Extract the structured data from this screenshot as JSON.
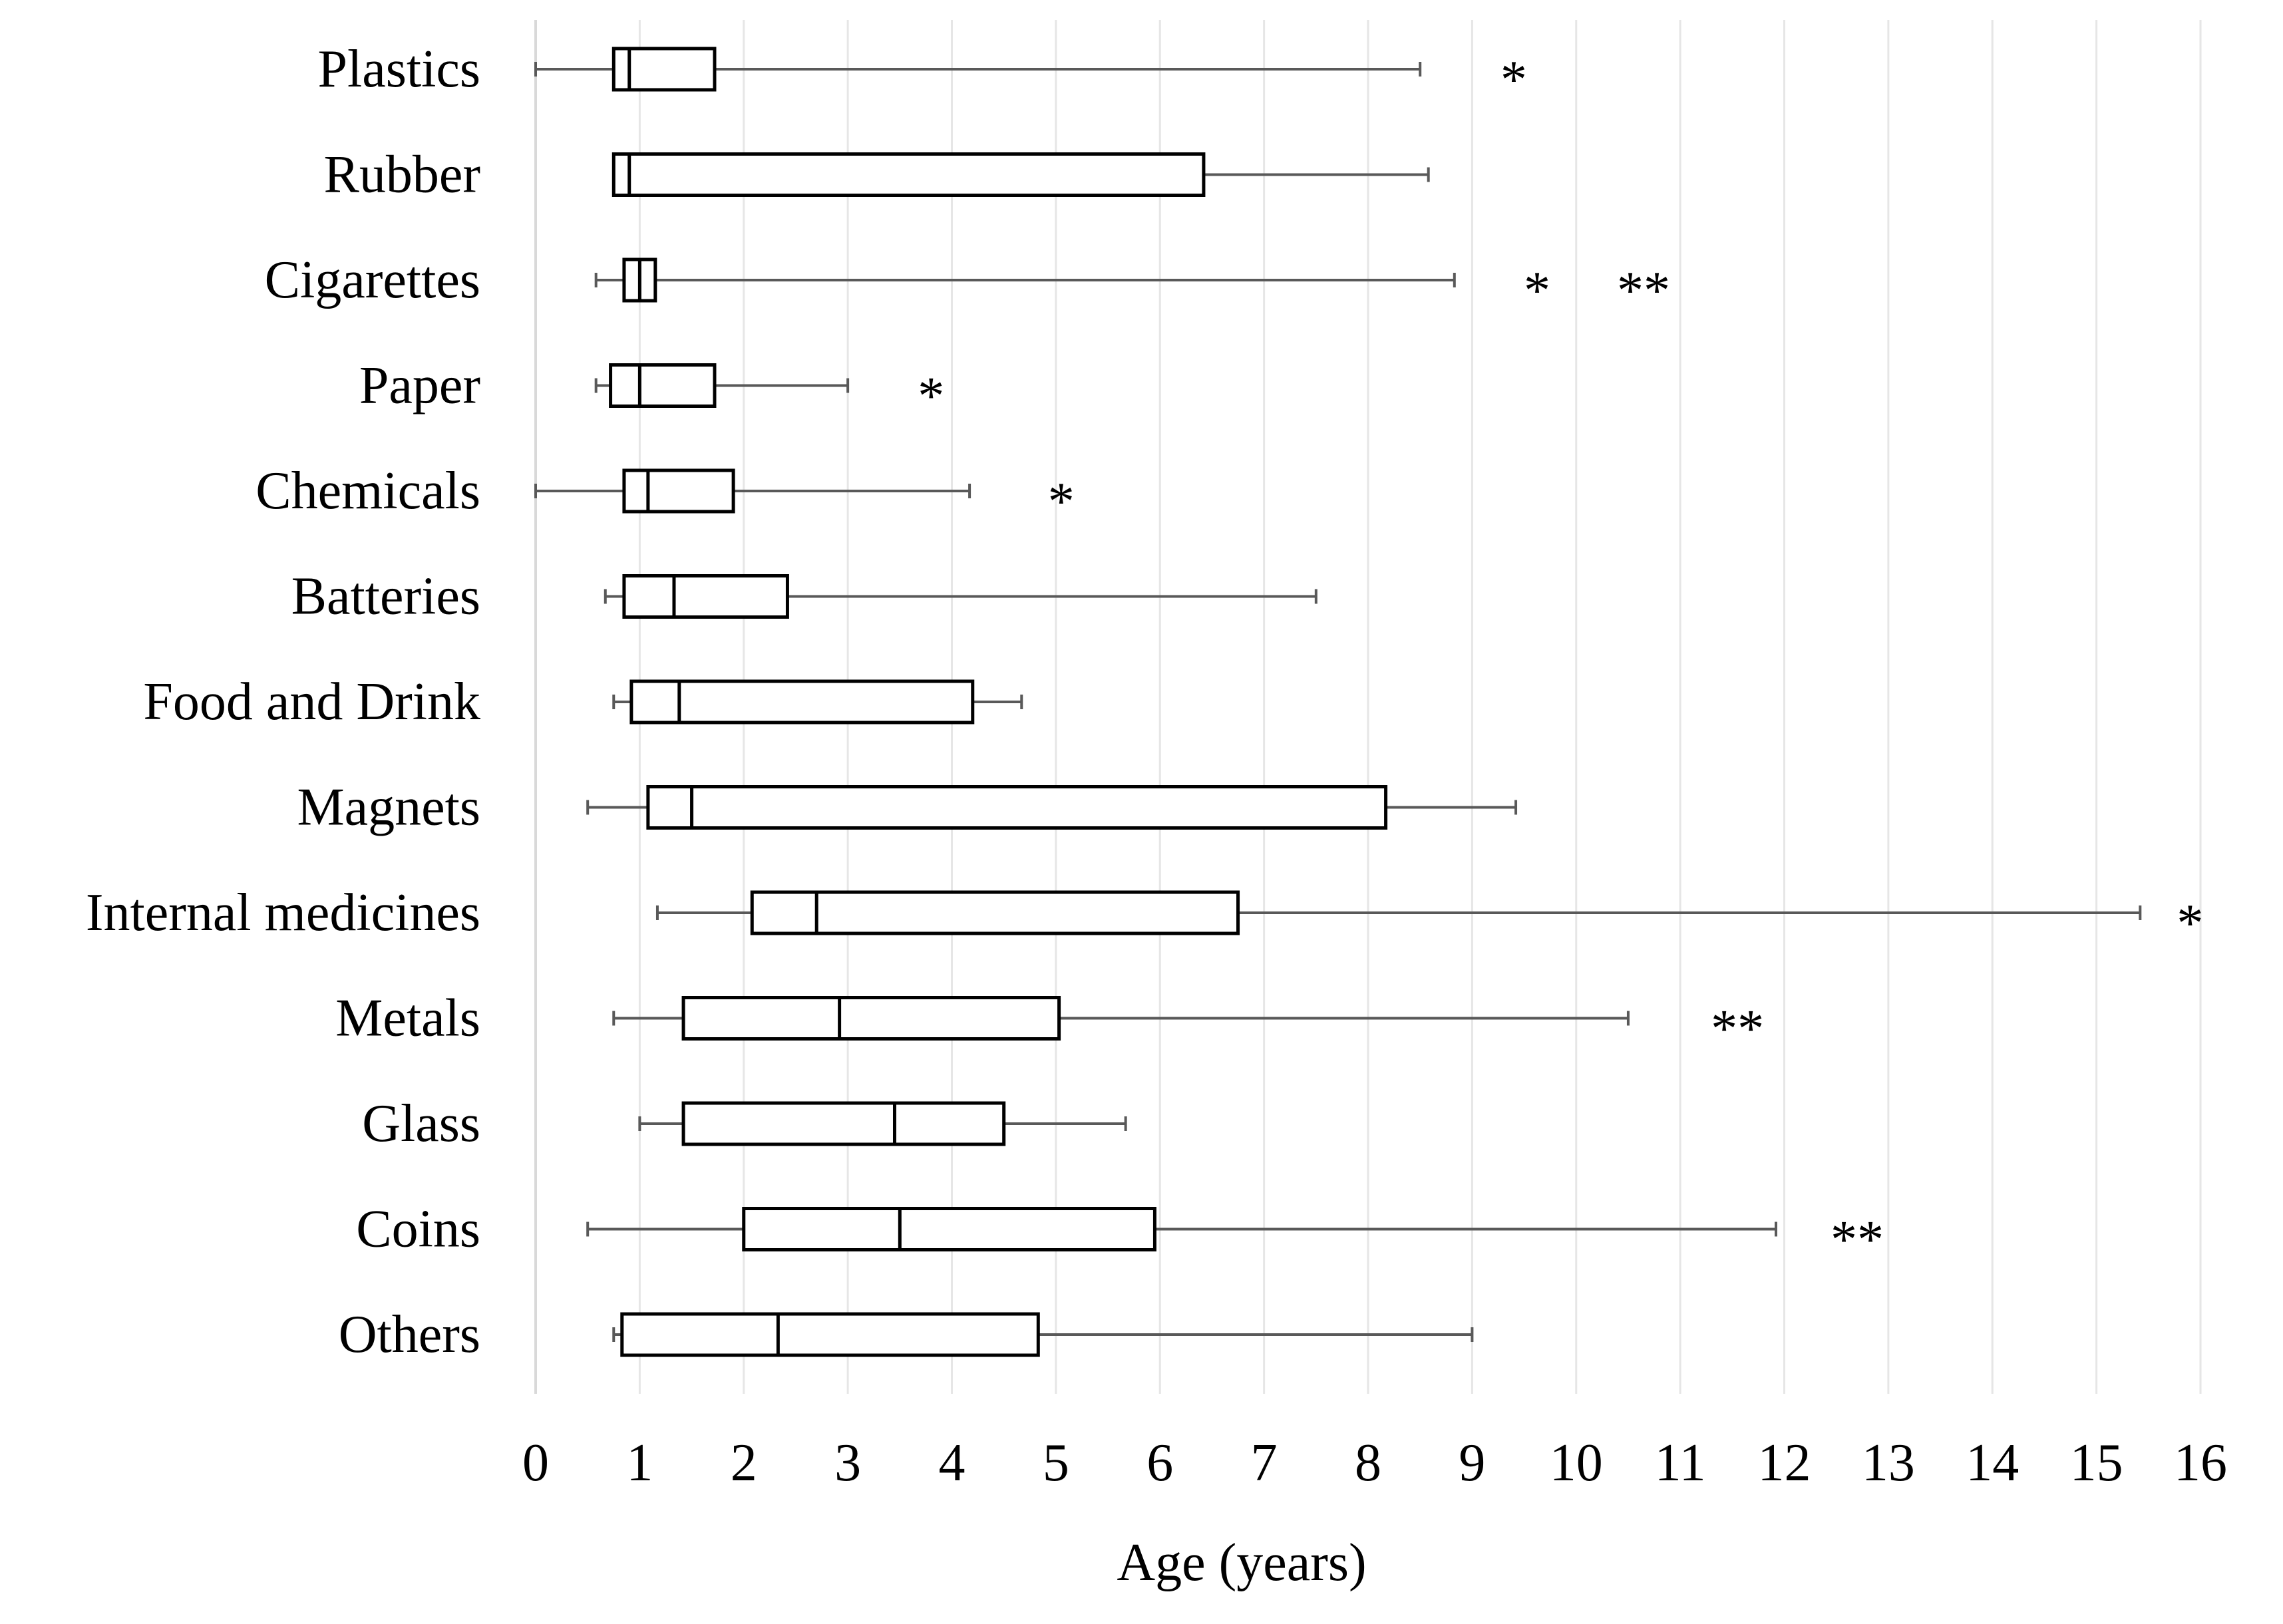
{
  "chart_data": {
    "type": "boxplot",
    "orientation": "horizontal",
    "title": "",
    "xlabel": "Age (years)",
    "ylabel": "",
    "xlim": [
      0,
      16
    ],
    "xticks": [
      "0",
      "1",
      "2",
      "3",
      "4",
      "5",
      "6",
      "7",
      "8",
      "9",
      "10",
      "11",
      "12",
      "13",
      "14",
      "15",
      "16"
    ],
    "grid": "vertical",
    "colors": {
      "box": "#000000",
      "whisker": "#595959",
      "grid": "#e6e6e6",
      "background": "#ffffff"
    },
    "categories": [
      {
        "label": "Plastics",
        "whisker_low": 0.0,
        "q1": 0.75,
        "median": 0.9,
        "q3": 1.72,
        "whisker_high": 8.5,
        "marker": "*",
        "marker_at": 9.4
      },
      {
        "label": "Rubber",
        "whisker_low": 0.75,
        "q1": 0.75,
        "median": 0.9,
        "q3": 6.42,
        "whisker_high": 8.58,
        "marker": "",
        "marker_at": null
      },
      {
        "label": "Cigarettes",
        "whisker_low": 0.58,
        "q1": 0.85,
        "median": 1.0,
        "q3": 1.15,
        "whisker_high": 8.83,
        "marker": "*     **",
        "marker_at": 10.2
      },
      {
        "label": "Paper",
        "whisker_low": 0.58,
        "q1": 0.72,
        "median": 1.0,
        "q3": 1.72,
        "whisker_high": 3.0,
        "marker": "*",
        "marker_at": 3.8
      },
      {
        "label": "Chemicals",
        "whisker_low": 0.0,
        "q1": 0.85,
        "median": 1.08,
        "q3": 1.9,
        "whisker_high": 4.17,
        "marker": "*",
        "marker_at": 5.05
      },
      {
        "label": "Batteries",
        "whisker_low": 0.67,
        "q1": 0.85,
        "median": 1.33,
        "q3": 2.42,
        "whisker_high": 7.5,
        "marker": "",
        "marker_at": null
      },
      {
        "label": "Food and Drink",
        "whisker_low": 0.75,
        "q1": 0.92,
        "median": 1.38,
        "q3": 4.2,
        "whisker_high": 4.67,
        "marker": "",
        "marker_at": null
      },
      {
        "label": "Magnets",
        "whisker_low": 0.5,
        "q1": 1.08,
        "median": 1.5,
        "q3": 8.17,
        "whisker_high": 9.42,
        "marker": "",
        "marker_at": null
      },
      {
        "label": "Internal medicines",
        "whisker_low": 1.17,
        "q1": 2.08,
        "median": 2.7,
        "q3": 6.75,
        "whisker_high": 15.42,
        "marker": "*",
        "marker_at": 15.9
      },
      {
        "label": "Metals",
        "whisker_low": 0.75,
        "q1": 1.42,
        "median": 2.92,
        "q3": 5.03,
        "whisker_high": 10.5,
        "marker": "**",
        "marker_at": 11.55
      },
      {
        "label": "Glass",
        "whisker_low": 1.0,
        "q1": 1.42,
        "median": 3.45,
        "q3": 4.5,
        "whisker_high": 5.67,
        "marker": "",
        "marker_at": null
      },
      {
        "label": "Coins",
        "whisker_low": 0.5,
        "q1": 2.0,
        "median": 3.5,
        "q3": 5.95,
        "whisker_high": 11.92,
        "marker": "**",
        "marker_at": 12.7
      },
      {
        "label": "Others",
        "whisker_low": 0.75,
        "q1": 0.83,
        "median": 2.33,
        "q3": 4.83,
        "whisker_high": 9.0,
        "marker": "",
        "marker_at": null
      }
    ]
  }
}
